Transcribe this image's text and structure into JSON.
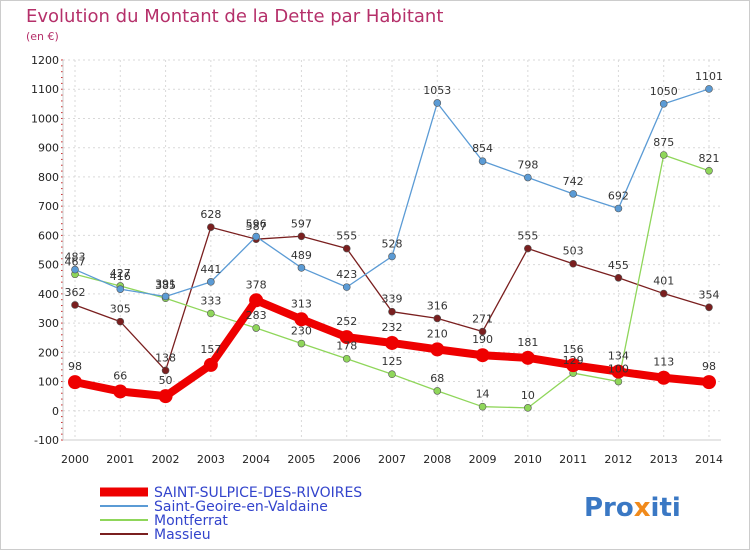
{
  "title": "Evolution du Montant de la Dette par Habitant",
  "subtitle": "(en €)",
  "brand": {
    "parts": [
      "Pro",
      "x",
      "iti"
    ],
    "colors": [
      "#3a78c4",
      "#f08a1c",
      "#3a78c4"
    ]
  },
  "colors": {
    "SAINT-SULPICE-DES-RIVOIRES": "#ee0000",
    "Saint-Geoire-en-Valdaine": "#5b9bd5",
    "Montferrat": "#8fd65a",
    "Massieu": "#7a1f1f"
  },
  "chart_data": {
    "type": "line",
    "title": "Evolution du Montant de la Dette par Habitant",
    "subtitle": "(en €)",
    "x": [
      "2000",
      "2001",
      "2002",
      "2003",
      "2004",
      "2005",
      "2006",
      "2007",
      "2008",
      "2009",
      "2010",
      "2011",
      "2012",
      "2013",
      "2014"
    ],
    "yticks": [
      -100,
      0,
      100,
      200,
      300,
      400,
      500,
      600,
      700,
      800,
      900,
      1000,
      1100,
      1200
    ],
    "ylim": [
      -100,
      1200
    ],
    "grid": true,
    "legend_position": "bottom-left",
    "series": [
      {
        "name": "SAINT-SULPICE-DES-RIVOIRES",
        "values": [
          98,
          66,
          50,
          157,
          378,
          313,
          252,
          232,
          210,
          190,
          181,
          156,
          134,
          113,
          98
        ]
      },
      {
        "name": "Saint-Geoire-en-Valdaine",
        "values": [
          483,
          416,
          391,
          441,
          596,
          489,
          423,
          528,
          1053,
          854,
          798,
          742,
          692,
          1050,
          1101
        ]
      },
      {
        "name": "Montferrat",
        "values": [
          467,
          427,
          385,
          333,
          283,
          230,
          178,
          125,
          68,
          14,
          10,
          129,
          100,
          875,
          821
        ]
      },
      {
        "name": "Massieu",
        "values": [
          362,
          305,
          138,
          628,
          587,
          597,
          555,
          339,
          316,
          271,
          555,
          503,
          455,
          401,
          354
        ]
      }
    ]
  }
}
